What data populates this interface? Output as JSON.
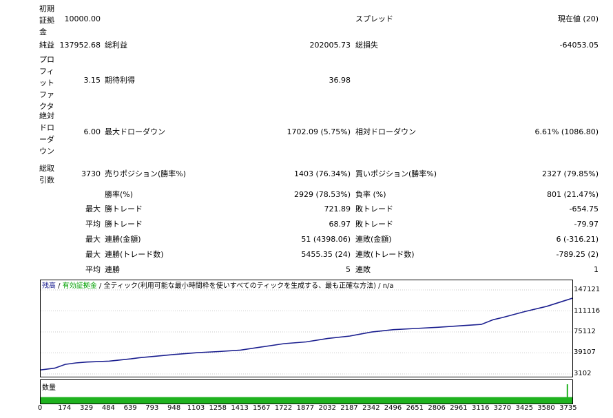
{
  "stats": {
    "initial_deposit_label": "初期証拠金",
    "initial_deposit_value": "10000.00",
    "spread_label": "スプレッド",
    "spread_value": "現在値 (20)",
    "net_profit_label": "純益",
    "net_profit_value": "137952.68",
    "gross_profit_label": "総利益",
    "gross_profit_value": "202005.73",
    "gross_loss_label": "総損失",
    "gross_loss_value": "-64053.05",
    "profit_factor_label": "プロフィットファクタ",
    "profit_factor_value": "3.15",
    "expected_payoff_label": "期待利得",
    "expected_payoff_value": "36.98",
    "abs_drawdown_label": "絶対ドローダウン",
    "abs_drawdown_value": "6.00",
    "max_drawdown_label": "最大ドローダウン",
    "max_drawdown_value": "1702.09 (5.75%)",
    "rel_drawdown_label": "相対ドローダウン",
    "rel_drawdown_value": "6.61% (1086.80)",
    "total_trades_label": "総取引数",
    "total_trades_value": "3730",
    "short_label": "売りポジション(勝率%)",
    "short_value": "1403 (76.34%)",
    "long_label": "買いポジション(勝率%)",
    "long_value": "2327 (79.85%)",
    "win_label": "勝率(%)",
    "win_value": "2929 (78.53%)",
    "loss_label": "負率 (%)",
    "loss_value": "801 (21.47%)",
    "row_max1": "最大",
    "largest_win_label": "勝トレード",
    "largest_win_value": "721.89",
    "largest_loss_label": "敗トレード",
    "largest_loss_value": "-654.75",
    "row_avg1": "平均",
    "avg_win_label": "勝トレード",
    "avg_win_value": "68.97",
    "avg_loss_label": "敗トレード",
    "avg_loss_value": "-79.97",
    "row_max2": "最大",
    "max_consec_wins_money_label": "連勝(金額)",
    "max_consec_wins_money_value": "51 (4398.06)",
    "max_consec_losses_money_label": "連敗(金額)",
    "max_consec_losses_money_value": "6 (-316.21)",
    "row_max3": "最大",
    "max_consec_profit_label": "連勝(トレード数)",
    "max_consec_profit_value": "5455.35 (24)",
    "max_consec_loss_label": "連敗(トレード数)",
    "max_consec_loss_value": "-789.25 (2)",
    "row_avg2": "平均",
    "avg_consec_wins_label": "連勝",
    "avg_consec_wins_value": "5",
    "avg_consec_losses_label": "連敗",
    "avg_consec_losses_value": "1"
  },
  "chart": {
    "legend_balance": "残高",
    "legend_sep1": " / ",
    "legend_equity": "有効証拠金",
    "legend_sep2": " / ",
    "legend_model": "全ティック(利用可能な最小時間枠を使いすべてのティックを生成する、最も正確な方法)",
    "legend_sep3": " / ",
    "legend_quality": "n/a",
    "volume_label": "数量",
    "colors": {
      "balance": "#1b1f8f",
      "equity": "#00a000",
      "volume": "#1fb21f"
    }
  },
  "chart_data": {
    "type": "line",
    "series": [
      {
        "name": "残高",
        "x": [
          0,
          100,
          174,
          250,
          329,
          484,
          639,
          700,
          793,
          948,
          1103,
          1258,
          1413,
          1567,
          1722,
          1877,
          2032,
          2187,
          2342,
          2496,
          2651,
          2806,
          2961,
          3116,
          3200,
          3270,
          3425,
          3580,
          3735,
          3800
        ],
        "y": [
          10000,
          13000,
          19500,
          22000,
          23500,
          25000,
          29000,
          31000,
          33000,
          36500,
          39500,
          41500,
          44000,
          49500,
          55000,
          58000,
          64000,
          68000,
          75000,
          79000,
          81000,
          83000,
          85500,
          88000,
          96000,
          100000,
          110000,
          119000,
          131000,
          136000
        ]
      }
    ],
    "ylim": [
      3102,
      147121
    ],
    "yticks": [
      "147121",
      "111116",
      "75112",
      "39107",
      "3102"
    ],
    "xlim": [
      0,
      3760
    ],
    "xticks": [
      "0",
      "174",
      "329",
      "484",
      "639",
      "793",
      "948",
      "1103",
      "1258",
      "1413",
      "1567",
      "1722",
      "1877",
      "2032",
      "2187",
      "2342",
      "2496",
      "2651",
      "2806",
      "2961",
      "3116",
      "3270",
      "3425",
      "3580",
      "3735"
    ],
    "volume": {
      "baseline": 1,
      "spike_x": 3720,
      "spike": 3
    }
  }
}
